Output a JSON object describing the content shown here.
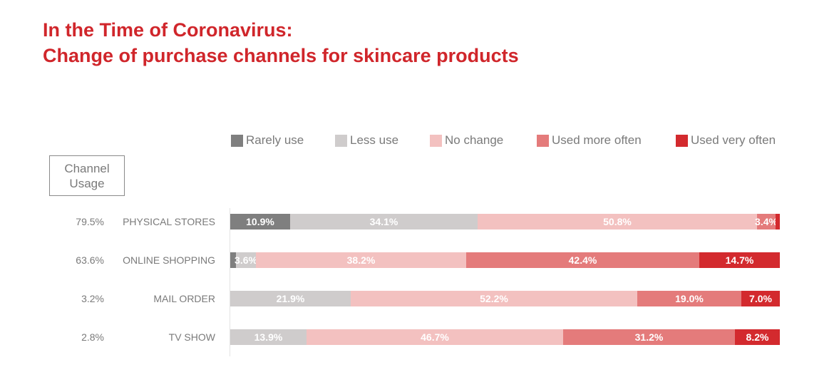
{
  "title_line1": "In the Time of Coronavirus:",
  "title_line2": "Change of purchase channels for skincare products",
  "channel_box_label": "Channel Usage",
  "colors": {
    "title": "#d0262b",
    "rarely": "#7f7f7f",
    "less": "#cfcccc",
    "nochange": "#f3c1c0",
    "more": "#e47b7b",
    "veryoften": "#d32a2e"
  },
  "chart_data": {
    "type": "bar",
    "orientation": "horizontal",
    "stacked": true,
    "title": "In the Time of Coronavirus: Change of purchase channels for skincare products",
    "xlabel": "",
    "ylabel": "",
    "legend_position": "top",
    "series_names": [
      "Rarely use",
      "Less use",
      "No change",
      "Used more often",
      "Used very often"
    ],
    "categories": [
      "PHYSICAL STORES",
      "ONLINE SHOPPING",
      "MAIL ORDER",
      "TV SHOW"
    ],
    "channel_usage": [
      "79.5%",
      "63.6%",
      "3.2%",
      "2.8%"
    ],
    "series": [
      {
        "name": "Rarely use",
        "values": [
          10.9,
          1.1,
          0,
          0
        ],
        "labels": [
          "10.9%",
          "",
          "",
          ""
        ]
      },
      {
        "name": "Less use",
        "values": [
          34.1,
          3.6,
          21.9,
          13.9
        ],
        "labels": [
          "34.1%",
          "3.6%",
          "21.9%",
          "13.9%"
        ]
      },
      {
        "name": "No change",
        "values": [
          50.8,
          38.2,
          52.2,
          46.7
        ],
        "labels": [
          "50.8%",
          "38.2%",
          "52.2%",
          "46.7%"
        ]
      },
      {
        "name": "Used more often",
        "values": [
          3.4,
          42.4,
          19.0,
          31.2
        ],
        "labels": [
          "3.4%",
          "42.4%",
          "19.0%",
          "31.2%"
        ]
      },
      {
        "name": "Used very often",
        "values": [
          0.8,
          14.7,
          7.0,
          8.2
        ],
        "labels": [
          "",
          "14.7%",
          "7.0%",
          "8.2%"
        ]
      }
    ]
  }
}
